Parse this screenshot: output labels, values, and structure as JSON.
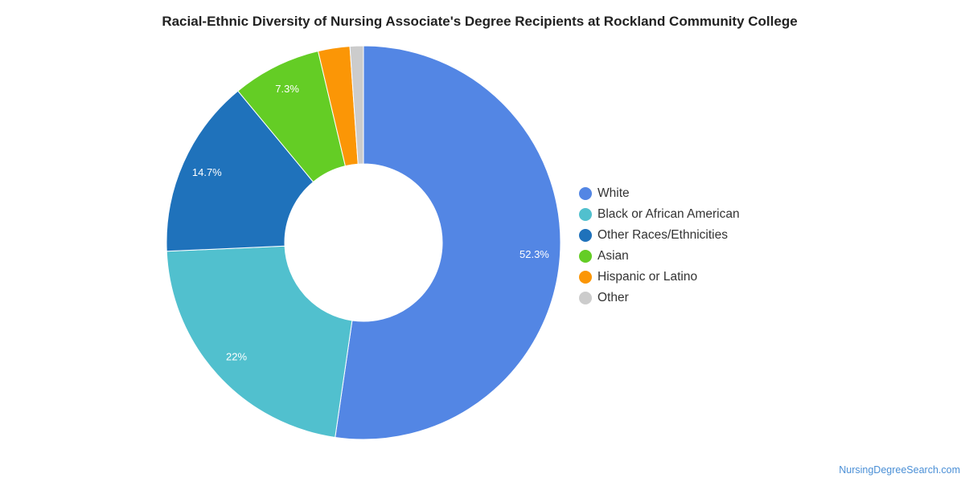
{
  "chart_data": {
    "type": "pie",
    "title": "Racial-Ethnic Diversity of Nursing Associate's Degree Recipients at Rockland Community College",
    "donut": true,
    "legend_position": "right",
    "slices": [
      {
        "label": "White",
        "value": 52.3,
        "value_label": "52.3%",
        "color": "#5386e4"
      },
      {
        "label": "Black or African American",
        "value": 22.0,
        "value_label": "22%",
        "color": "#51c0ce"
      },
      {
        "label": "Other Races/Ethnicities",
        "value": 14.7,
        "value_label": "14.7%",
        "color": "#1f72bb"
      },
      {
        "label": "Asian",
        "value": 7.3,
        "value_label": "7.3%",
        "color": "#64cd25"
      },
      {
        "label": "Hispanic or Latino",
        "value": 2.6,
        "value_label": "",
        "color": "#fb9606"
      },
      {
        "label": "Other",
        "value": 1.1,
        "value_label": "",
        "color": "#cccccc"
      }
    ]
  },
  "watermark": "NursingDegreeSearch.com"
}
